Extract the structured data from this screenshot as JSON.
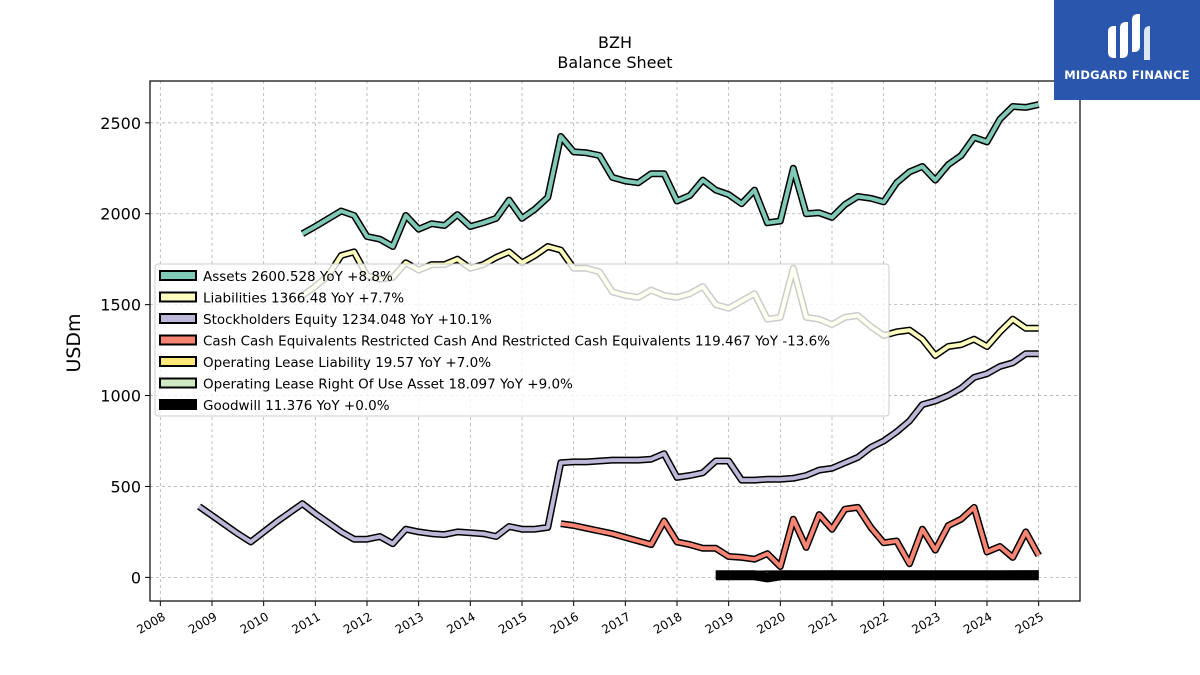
{
  "chart_data": {
    "type": "line",
    "title": "BZH",
    "subtitle": "Balance  Sheet",
    "ylabel": "USDm",
    "xlabel": "",
    "xlim": [
      2007.8,
      2025.8
    ],
    "ylim": [
      -130,
      2730
    ],
    "x_ticks": [
      "2008",
      "2009",
      "2010",
      "2011",
      "2012",
      "2013",
      "2014",
      "2015",
      "2016",
      "2017",
      "2018",
      "2019",
      "2020",
      "2021",
      "2022",
      "2023",
      "2024",
      "2025"
    ],
    "y_ticks": [
      0,
      500,
      1000,
      1500,
      2000,
      2500
    ],
    "grid": true,
    "legend_position": "center-left",
    "series": [
      {
        "name": "Assets",
        "legend": "Assets  2600.528 YoY +8.8%",
        "color": "#7fc9b6",
        "x": [
          2010.75,
          2011.0,
          2011.5,
          2011.75,
          2012.0,
          2012.25,
          2012.5,
          2012.75,
          2013.0,
          2013.25,
          2013.5,
          2013.75,
          2014.0,
          2014.25,
          2014.5,
          2014.75,
          2015.0,
          2015.25,
          2015.5,
          2015.75,
          2016.0,
          2016.25,
          2016.5,
          2016.75,
          2017.0,
          2017.25,
          2017.5,
          2017.75,
          2018.0,
          2018.25,
          2018.5,
          2018.75,
          2019.0,
          2019.25,
          2019.5,
          2019.75,
          2020.0,
          2020.25,
          2020.5,
          2020.75,
          2021.0,
          2021.25,
          2021.5,
          2021.75,
          2022.0,
          2022.25,
          2022.5,
          2022.75,
          2023.0,
          2023.25,
          2023.5,
          2023.75,
          2024.0,
          2024.25,
          2024.5,
          2024.75,
          2025.0
        ],
        "y": [
          1890,
          1930,
          2015,
          1990,
          1875,
          1860,
          1820,
          1990,
          1915,
          1945,
          1935,
          1995,
          1930,
          1950,
          1975,
          2075,
          1975,
          2025,
          2090,
          2425,
          2340,
          2335,
          2320,
          2200,
          2180,
          2170,
          2220,
          2220,
          2070,
          2100,
          2185,
          2130,
          2105,
          2055,
          2130,
          1950,
          1960,
          2250,
          2000,
          2005,
          1980,
          2050,
          2095,
          2085,
          2065,
          2170,
          2230,
          2260,
          2185,
          2270,
          2320,
          2420,
          2395,
          2520,
          2590,
          2585,
          2600
        ]
      },
      {
        "name": "Liabilities",
        "legend": "Liabilities  1366.48 YoY +7.7%",
        "color": "#fdfdbd",
        "x": [
          2010.75,
          2011.0,
          2011.25,
          2011.5,
          2011.75,
          2012.0,
          2012.25,
          2012.5,
          2012.75,
          2013.0,
          2013.25,
          2013.5,
          2013.75,
          2014.0,
          2014.25,
          2014.5,
          2014.75,
          2015.0,
          2015.25,
          2015.5,
          2015.75,
          2016.0,
          2016.25,
          2016.5,
          2016.75,
          2017.0,
          2017.25,
          2017.5,
          2017.75,
          2018.0,
          2018.25,
          2018.5,
          2018.75,
          2019.0,
          2019.25,
          2019.5,
          2019.75,
          2020.0,
          2020.25,
          2020.5,
          2020.75,
          2021.0,
          2021.25,
          2021.5,
          2021.75,
          2022.0,
          2022.25,
          2022.5,
          2022.75,
          2023.0,
          2023.25,
          2023.5,
          2023.75,
          2024.0,
          2024.25,
          2024.5,
          2024.75,
          2025.0
        ],
        "y": [
          1550,
          1600,
          1660,
          1770,
          1790,
          1660,
          1640,
          1650,
          1730,
          1690,
          1720,
          1720,
          1750,
          1700,
          1720,
          1760,
          1790,
          1730,
          1770,
          1820,
          1800,
          1700,
          1700,
          1680,
          1570,
          1550,
          1540,
          1580,
          1550,
          1540,
          1560,
          1600,
          1500,
          1480,
          1520,
          1560,
          1420,
          1430,
          1700,
          1430,
          1420,
          1390,
          1430,
          1440,
          1380,
          1330,
          1350,
          1360,
          1310,
          1220,
          1270,
          1280,
          1310,
          1270,
          1350,
          1420,
          1370,
          1370
        ]
      },
      {
        "name": "Stockholders Equity",
        "legend": "Stockholders Equity  1234.048 YoY +10.1%",
        "color": "#bcb8d8",
        "x": [
          2008.75,
          2009.0,
          2009.25,
          2009.5,
          2009.75,
          2010.0,
          2010.25,
          2010.5,
          2010.75,
          2011.0,
          2011.25,
          2011.5,
          2011.75,
          2012.0,
          2012.25,
          2012.5,
          2012.75,
          2013.0,
          2013.25,
          2013.5,
          2013.75,
          2014.0,
          2014.25,
          2014.5,
          2014.75,
          2015.0,
          2015.25,
          2015.5,
          2015.75,
          2016.0,
          2016.25,
          2016.5,
          2016.75,
          2017.0,
          2017.25,
          2017.5,
          2017.75,
          2018.0,
          2018.25,
          2018.5,
          2018.75,
          2019.0,
          2019.25,
          2019.5,
          2019.75,
          2020.0,
          2020.25,
          2020.5,
          2020.75,
          2021.0,
          2021.25,
          2021.5,
          2021.75,
          2022.0,
          2022.25,
          2022.5,
          2022.75,
          2023.0,
          2023.25,
          2023.5,
          2023.75,
          2024.0,
          2024.25,
          2024.5,
          2024.75,
          2025.0
        ],
        "y": [
          390,
          340,
          290,
          240,
          195,
          250,
          305,
          355,
          405,
          350,
          300,
          250,
          210,
          210,
          225,
          185,
          265,
          250,
          240,
          235,
          250,
          245,
          240,
          225,
          280,
          265,
          265,
          275,
          630,
          635,
          635,
          640,
          645,
          645,
          645,
          650,
          680,
          550,
          560,
          575,
          640,
          640,
          535,
          535,
          540,
          540,
          545,
          560,
          590,
          600,
          630,
          660,
          715,
          750,
          800,
          860,
          950,
          970,
          1000,
          1040,
          1100,
          1120,
          1160,
          1180,
          1230,
          1230
        ]
      },
      {
        "name": "Cash Cash Equivalents Restricted Cash And Restricted Cash Equivalents",
        "legend": "Cash Cash Equivalents Restricted Cash And Restricted Cash Equivalents  119.467 YoY -13.6%",
        "color": "#f88474",
        "x": [
          2015.75,
          2016.0,
          2016.25,
          2016.5,
          2016.75,
          2017.0,
          2017.25,
          2017.5,
          2017.75,
          2018.0,
          2018.25,
          2018.5,
          2018.75,
          2019.0,
          2019.25,
          2019.5,
          2019.75,
          2020.0,
          2020.25,
          2020.5,
          2020.75,
          2021.0,
          2021.25,
          2021.5,
          2021.75,
          2022.0,
          2022.25,
          2022.5,
          2022.75,
          2023.0,
          2023.25,
          2023.5,
          2023.75,
          2024.0,
          2024.25,
          2024.5,
          2024.75,
          2025.0
        ],
        "y": [
          295,
          285,
          270,
          255,
          240,
          220,
          200,
          180,
          310,
          195,
          180,
          160,
          160,
          115,
          110,
          100,
          130,
          60,
          320,
          165,
          345,
          265,
          375,
          385,
          275,
          190,
          200,
          75,
          265,
          150,
          285,
          320,
          385,
          140,
          170,
          110,
          250,
          120
        ]
      },
      {
        "name": "Operating Lease Liability",
        "legend": "Operating Lease Liability  19.57 YoY +7.0%",
        "color": "#ffe97a",
        "x": [
          2018.75,
          2019.0,
          2019.25,
          2019.5,
          2019.75,
          2020.0,
          2020.5,
          2021.0,
          2021.5,
          2022.0,
          2022.5,
          2023.0,
          2023.5,
          2024.0,
          2024.5,
          2025.0
        ],
        "y": [
          15,
          16,
          17,
          18,
          19,
          19,
          18,
          19,
          18,
          17,
          16,
          15,
          17,
          18,
          19,
          19.57
        ]
      },
      {
        "name": "Operating Lease Right Of Use Asset",
        "legend": "Operating Lease Right Of Use Asset  18.097 YoY +9.0%",
        "color": "#cfe9c3",
        "x": [
          2018.75,
          2019.0,
          2019.25,
          2019.5,
          2019.75,
          2020.0,
          2020.5,
          2021.0,
          2021.5,
          2022.0,
          2022.5,
          2023.0,
          2023.5,
          2024.0,
          2024.5,
          2025.0
        ],
        "y": [
          14,
          15,
          16,
          17,
          18,
          18,
          17,
          18,
          17,
          16,
          15,
          14,
          16,
          17,
          18,
          18.097
        ]
      },
      {
        "name": "Goodwill",
        "legend": "Goodwill  11.376 YoY +0.0%",
        "color": "#000000",
        "x": [
          2018.75,
          2019.0,
          2019.5,
          2019.75,
          2020.0,
          2020.5,
          2021.0,
          2021.5,
          2022.0,
          2022.5,
          2023.0,
          2023.5,
          2024.0,
          2024.5,
          2025.0
        ],
        "y": [
          11.376,
          11.376,
          11.376,
          0,
          11.376,
          11.376,
          11.376,
          11.376,
          11.376,
          11.376,
          11.376,
          11.376,
          11.376,
          11.376,
          11.376
        ]
      }
    ]
  },
  "logo": {
    "text": "MIDGARD FINANCE",
    "icon": "midgard-logo-icon"
  }
}
